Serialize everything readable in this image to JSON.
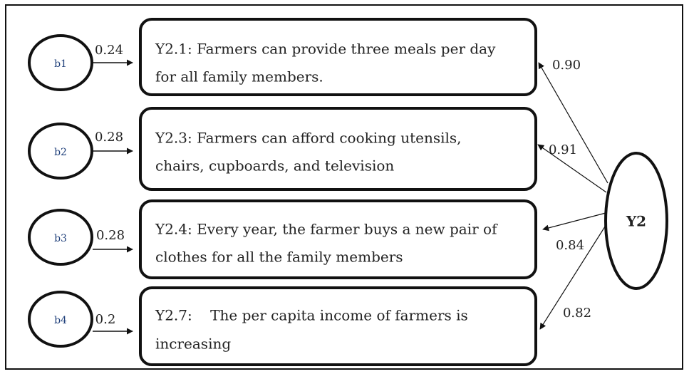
{
  "errors": [
    {
      "label": "b1",
      "coefficient": "0.24"
    },
    {
      "label": "b2",
      "coefficient": "0.28"
    },
    {
      "label": "b3",
      "coefficient": "0.28"
    },
    {
      "label": "b4",
      "coefficient": "0.2"
    }
  ],
  "indicators": [
    {
      "lines": [
        "Y2.1: Farmers can provide three meals per day",
        "for all family members."
      ],
      "loading": "0.90"
    },
    {
      "lines": [
        "Y2.3: Farmers can afford cooking utensils,",
        "chairs, cupboards, and television"
      ],
      "loading": "0.91"
    },
    {
      "lines": [
        "Y2.4: Every year, the farmer buys a new pair of",
        "clothes for all the family members"
      ],
      "loading": "0.84"
    },
    {
      "lines": [
        "Y2.7:    The per capita income of farmers is",
        "increasing"
      ],
      "loading": "0.82"
    }
  ],
  "latent": {
    "label": "Y2"
  }
}
